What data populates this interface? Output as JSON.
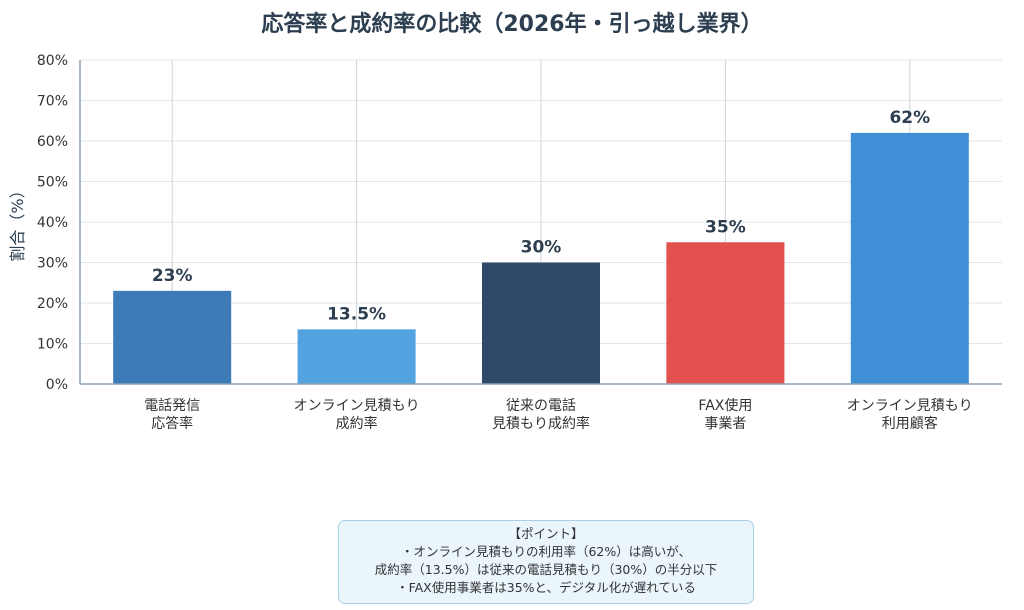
{
  "chart_data": {
    "type": "bar",
    "title": "応答率と成約率の比較（2026年・引っ越し業界）",
    "xlabel": "",
    "ylabel": "割合（%）",
    "ylim": [
      0,
      80
    ],
    "yticks": [
      "0%",
      "10%",
      "20%",
      "30%",
      "40%",
      "50%",
      "60%",
      "70%",
      "80%"
    ],
    "grid": true,
    "categories": [
      [
        "電話発信",
        "応答率"
      ],
      [
        "オンライン見積もり",
        "成約率"
      ],
      [
        "従来の電話",
        "見積もり成約率"
      ],
      [
        "FAX使用",
        "事業者"
      ],
      [
        "オンライン見積もり",
        "利用顧客"
      ]
    ],
    "values": [
      23,
      13.5,
      30,
      35,
      62
    ],
    "value_labels": [
      "23%",
      "13.5%",
      "30%",
      "35%",
      "62%"
    ],
    "bar_colors": [
      "#3d7ab8",
      "#52a3e0",
      "#2e4a68",
      "#e35050",
      "#3f8fd6"
    ]
  },
  "note": {
    "lines": [
      "【ポイント】",
      "・オンライン見積もりの利用率（62%）は高いが、",
      "成約率（13.5%）は従来の電話見積もり（30%）の半分以下",
      "・FAX使用事業者は35%と、デジタル化が遅れている"
    ]
  }
}
